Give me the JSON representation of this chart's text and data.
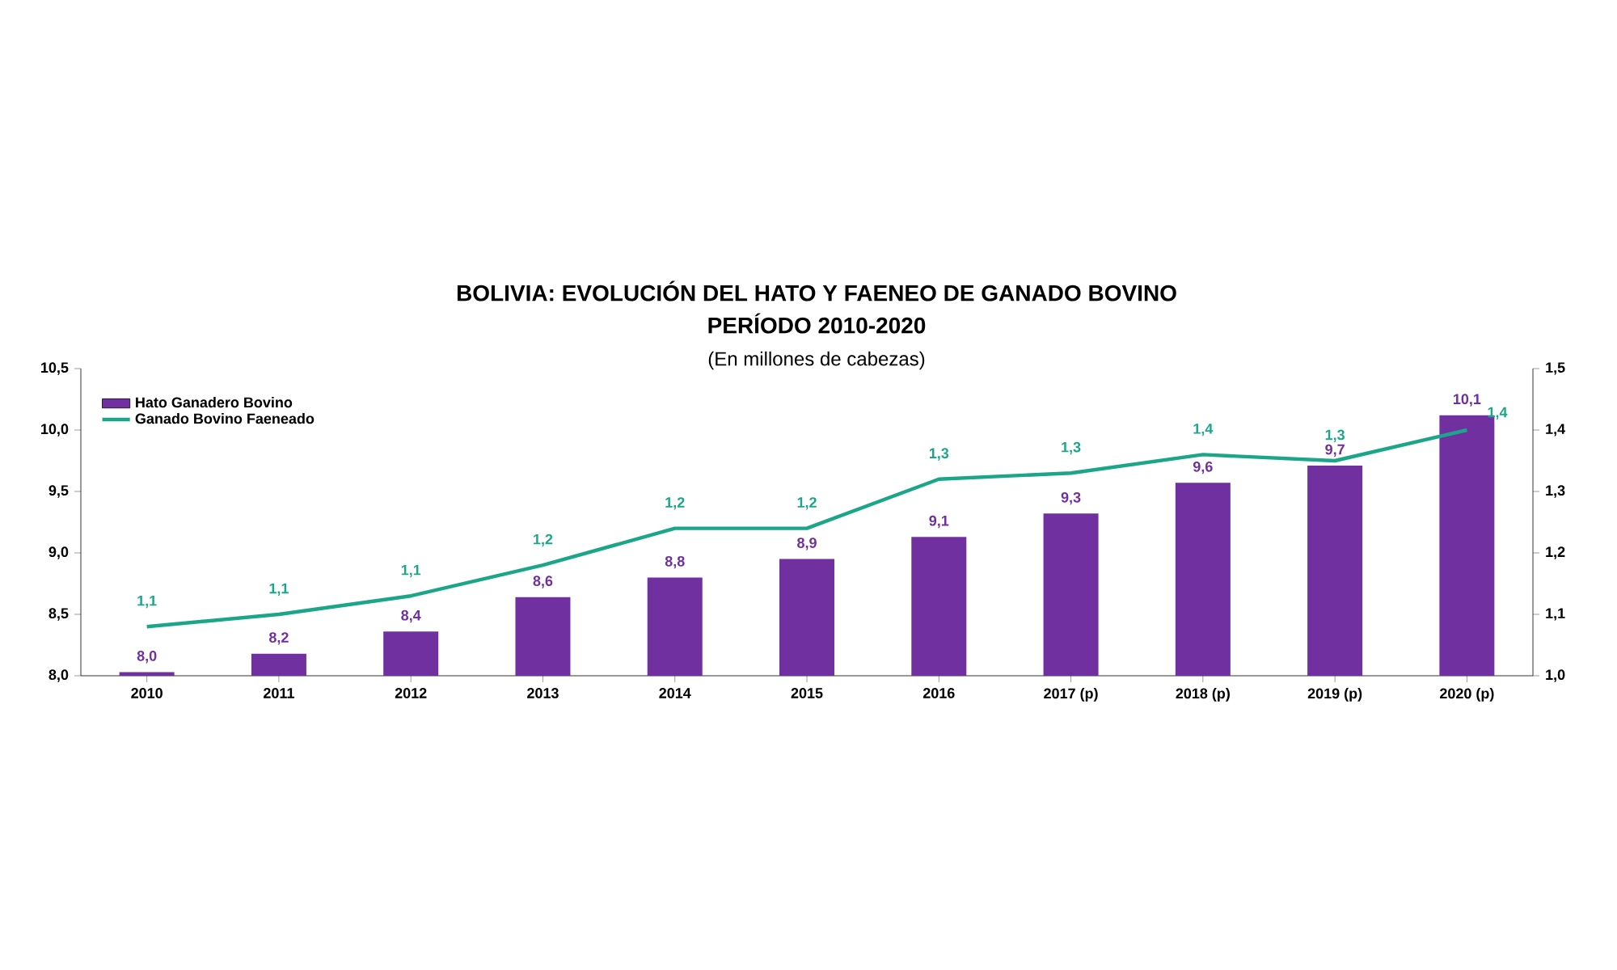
{
  "chart_data": {
    "type": "bar",
    "title": "BOLIVIA: EVOLUCIÓN DEL HATO Y FAENEO DE GANADO BOVINO",
    "subtitle": "PERÍODO 2010-2020",
    "annotations": [
      "(En millones de cabezas)"
    ],
    "categories": [
      "2010",
      "2011",
      "2012",
      "2013",
      "2014",
      "2015",
      "2016",
      "2017 (p)",
      "2018 (p)",
      "2019 (p)",
      "2020 (p)"
    ],
    "series": [
      {
        "name": "Hato Ganadero Bovino",
        "color": "#7030a0",
        "values": [
          8.03,
          8.18,
          8.36,
          8.64,
          8.8,
          8.95,
          9.13,
          9.32,
          9.57,
          9.71,
          10.12
        ],
        "value_labels": [
          "8,0",
          "8,2",
          "8,4",
          "8,6",
          "8,8",
          "8,9",
          "9,1",
          "9,3",
          "9,6",
          "9,7",
          "10,1"
        ]
      },
      {
        "name": "Ganado Bovino Faeneado",
        "type": "line",
        "axis": "y2",
        "color": "#1ba68a",
        "values": [
          1.08,
          1.1,
          1.13,
          1.18,
          1.24,
          1.24,
          1.32,
          1.33,
          1.36,
          1.35,
          1.4
        ],
        "value_labels": [
          "1,1",
          "1,1",
          "1,1",
          "1,2",
          "1,2",
          "1,2",
          "1,3",
          "1,3",
          "1,4",
          "1,3",
          "1,4"
        ]
      }
    ],
    "ylim": [
      8.0,
      10.5
    ],
    "yticks": [
      {
        "value": 8.0,
        "label": "8,0"
      },
      {
        "value": 8.5,
        "label": "8,5"
      },
      {
        "value": 9.0,
        "label": "9,0"
      },
      {
        "value": 9.5,
        "label": "9,5"
      },
      {
        "value": 10.0,
        "label": "10,0"
      },
      {
        "value": 10.5,
        "label": "10,5"
      }
    ],
    "y2lim": [
      1.0,
      1.5
    ],
    "y2ticks": [
      {
        "value": 1.0,
        "label": "1,0"
      },
      {
        "value": 1.1,
        "label": "1,1"
      },
      {
        "value": 1.2,
        "label": "1,2"
      },
      {
        "value": 1.3,
        "label": "1,3"
      },
      {
        "value": 1.4,
        "label": "1,4"
      },
      {
        "value": 1.5,
        "label": "1,5"
      }
    ],
    "legend": "top left",
    "grid": false,
    "marker": "none",
    "line_style": "solid"
  }
}
